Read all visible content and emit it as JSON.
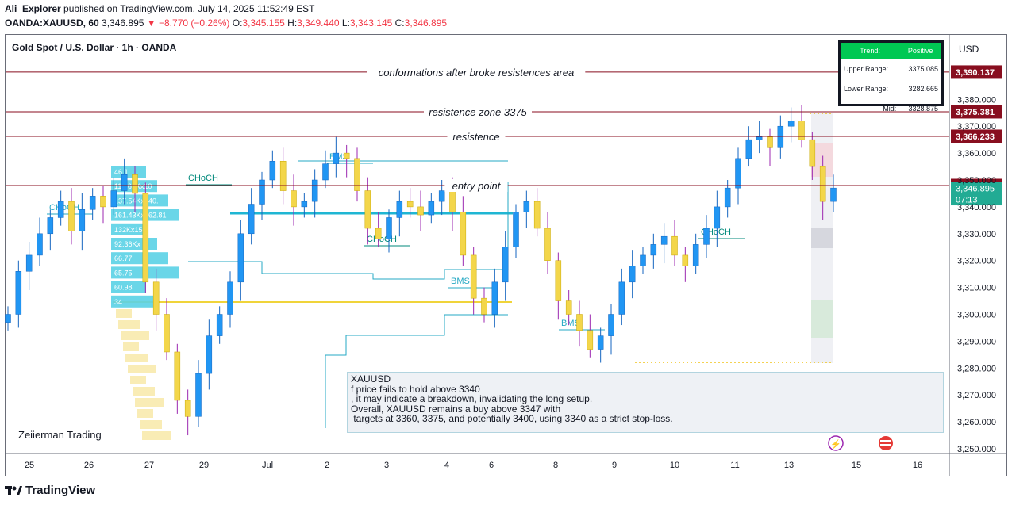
{
  "header": {
    "publisher": "Ali_Explorer",
    "published_text": "published on TradingView.com, July 14, 2025 11:52:49 EST",
    "symbol": "OANDA:XAUUSD, 60",
    "last": "3,346.895",
    "change": "−8.770 (−0.26%)",
    "o_label": "O:",
    "o_val": "3,345.155",
    "h_label": "H:",
    "h_val": "3,349.440",
    "l_label": "L:",
    "l_val": "3,343.145",
    "c_label": "C:",
    "c_val": "3,346.895"
  },
  "pair_title": "Gold Spot / U.S. Dollar · 1h · OANDA",
  "watermark": "Zeiierman Trading",
  "footer_logo": "TradingView",
  "trend_table": {
    "head_left": "Trend:",
    "head_right": "Positive",
    "rows": [
      {
        "label": "Upper Range:",
        "value": "3375.085"
      },
      {
        "label": "Lower Range:",
        "value": "3282.665"
      },
      {
        "label": "Mid:",
        "value": "3328.875"
      }
    ]
  },
  "note": {
    "lines": [
      "XAUUSD",
      "f price fails to hold above 3340",
      ", it may indicate a breakdown, invalidating the long setup.",
      "",
      "Overall, XAUUSD remains a buy above 3347 with",
      " targets at 3360, 3375, and potentially 3400, using 3340 as a strict stop-loss."
    ]
  },
  "chart_data": {
    "type": "candlestick",
    "currency": "USD",
    "y_ticks": [
      3250,
      3260,
      3270,
      3280,
      3290,
      3300,
      3310,
      3320,
      3330,
      3340,
      3350,
      3360,
      3370,
      3380
    ],
    "ylim": [
      3250,
      3398
    ],
    "x_ticks": [
      "25",
      "26",
      "27",
      "29",
      "Jul",
      "2",
      "3",
      "4",
      "6",
      "8",
      "9",
      "10",
      "11",
      "13",
      "15",
      "16"
    ],
    "horizontal_lines": [
      {
        "price": 3390.137,
        "text": "conformations after broke resistences area",
        "color": "#880e1f"
      },
      {
        "price": 3375.381,
        "text": "resistence zone 3375",
        "color": "#880e1f"
      },
      {
        "price": 3366.233,
        "text": "resistence",
        "color": "#880e1f"
      },
      {
        "price": 3347.935,
        "text": "entry point",
        "color": "#880e1f"
      }
    ],
    "price_tags": [
      {
        "price": 3390.137,
        "text": "3,390.137",
        "color": "#880e1f"
      },
      {
        "price": 3375.381,
        "text": "3,375.381",
        "color": "#880e1f"
      },
      {
        "price": 3366.233,
        "text": "3,366.233",
        "color": "#880e1f"
      },
      {
        "price": 3347.935,
        "text": "3,347.935",
        "color": "#880e1f"
      },
      {
        "price": 3346.895,
        "text": "3,346.895",
        "sub": "07:13",
        "color": "#22ab94"
      }
    ],
    "structure_labels": [
      {
        "text": "CHoCH",
        "price": 3343
      },
      {
        "text": "CHoCH",
        "price": 3355
      },
      {
        "text": "BMS",
        "price": 3361
      },
      {
        "text": "CHoCH",
        "price": 3329
      },
      {
        "text": "BMS",
        "price": 3312
      },
      {
        "text": "BMS",
        "price": 3298
      },
      {
        "text": "CHoCH",
        "price": 3331
      }
    ],
    "volume_labels": [
      "46.1",
      "115.62Kx10",
      "137.54Kx140.",
      "161.43Kx162.81",
      "132Kx154.57",
      "92.36Kx",
      "66.77",
      "65.75",
      "60.98",
      "34."
    ],
    "sample_closes": [
      3300,
      3316,
      3322,
      3330,
      3336,
      3342,
      3331,
      3339,
      3344,
      3340,
      3346,
      3352,
      3345,
      3312,
      3300,
      3286,
      3268,
      3262,
      3278,
      3292,
      3300,
      3312,
      3330,
      3341,
      3350,
      3357,
      3346,
      3340,
      3342,
      3350,
      3356,
      3360,
      3358,
      3346,
      3332,
      3328,
      3336,
      3342,
      3340,
      3337,
      3342,
      3346,
      3338,
      3322,
      3306,
      3300,
      3312,
      3325,
      3338,
      3342,
      3332,
      3320,
      3305,
      3300,
      3294,
      3287,
      3292,
      3300,
      3312,
      3318,
      3322,
      3326,
      3329,
      3322,
      3318,
      3326,
      3332,
      3340,
      3347,
      3358,
      3365,
      3366,
      3362,
      3370,
      3372,
      3365,
      3355,
      3342,
      3347
    ]
  }
}
